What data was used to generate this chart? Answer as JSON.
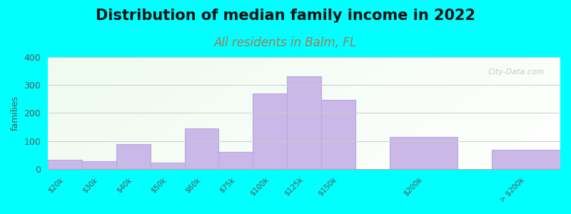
{
  "title": "Distribution of median family income in 2022",
  "subtitle": "All residents in Balm, FL",
  "ylabel": "families",
  "background_color": "#00FFFF",
  "bar_color": "#c9b8e8",
  "bar_edge_color": "#b8a8dc",
  "categories": [
    "$20k",
    "$30k",
    "$40k",
    "$50k",
    "$60k",
    "$75k",
    "$100k",
    "$125k",
    "$150k",
    "$200k",
    "> $200k"
  ],
  "values": [
    33,
    27,
    90,
    22,
    145,
    62,
    270,
    330,
    248,
    115,
    68
  ],
  "bar_lefts": [
    0,
    1,
    2,
    3,
    4,
    5,
    6,
    7,
    8,
    10,
    13
  ],
  "bar_widths": [
    1,
    1,
    1,
    1,
    1,
    1,
    1,
    1,
    1,
    2,
    2
  ],
  "tick_positions": [
    0.5,
    1.5,
    2.5,
    3.5,
    4.5,
    5.5,
    6.5,
    7.5,
    8.5,
    11.0,
    14.0
  ],
  "xlim": [
    0,
    15
  ],
  "ylim": [
    0,
    400
  ],
  "yticks": [
    0,
    100,
    200,
    300,
    400
  ],
  "title_fontsize": 15,
  "subtitle_fontsize": 12,
  "subtitle_color": "#aa7755",
  "watermark": "City-Data.com"
}
